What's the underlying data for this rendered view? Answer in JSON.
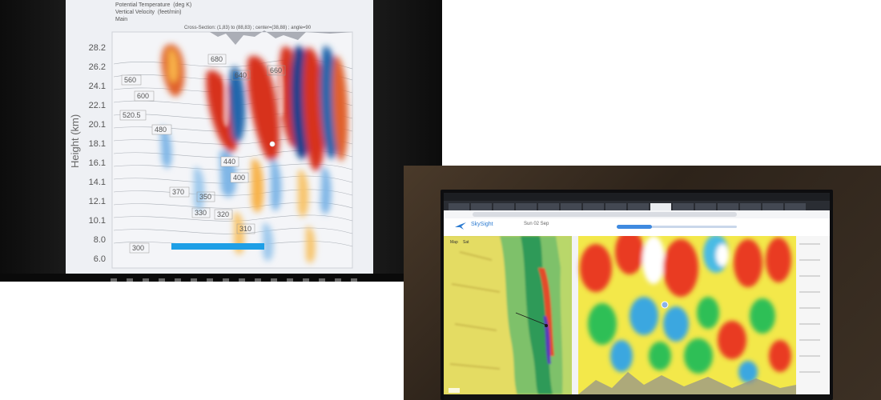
{
  "photo1": {
    "header_lines": [
      "Potential Temperature  (deg K)",
      "Vertical Velocity  (feet/min)",
      "Main"
    ],
    "cross_section": "Cross-Section: (1,83) to (88,83) ; center=(38,88) ; angle=90",
    "y_axis_label": "Height (km)",
    "y_ticks": [
      "28.2",
      "26.2",
      "24.1",
      "22.1",
      "20.1",
      "18.1",
      "16.1",
      "14.1",
      "12.1",
      "10.1",
      "8.0",
      "6.0"
    ],
    "isentrope_labels": [
      "680",
      "640",
      "660",
      "560",
      "600",
      "520.5",
      "480",
      "440",
      "400",
      "370",
      "350",
      "330",
      "320",
      "310",
      "300"
    ],
    "colors": {
      "warm": "#d7301f",
      "cool": "#2166ac",
      "highlight": "#1e9fe6"
    }
  },
  "photo2": {
    "brand": "SkySight",
    "date_selector": "Sun 02 Sep",
    "map_chips": [
      "Map",
      "Sat"
    ],
    "colors": {
      "accent": "#2c7bd1",
      "slider": "#3f8ae0"
    }
  }
}
